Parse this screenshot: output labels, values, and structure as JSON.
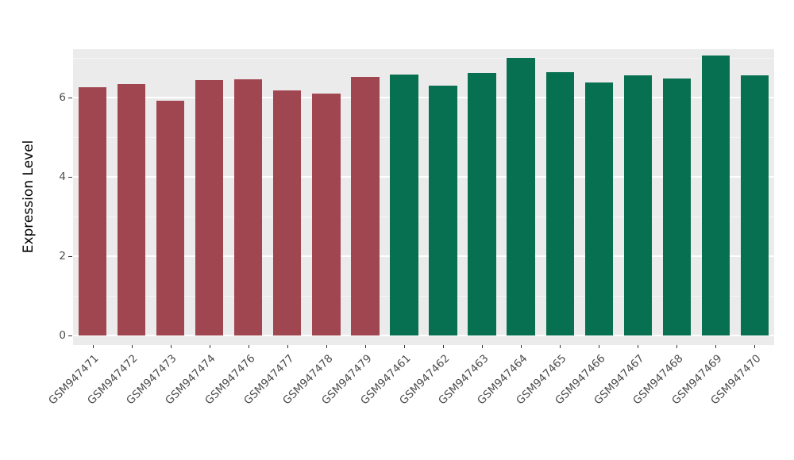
{
  "chart_data": {
    "type": "bar",
    "title": "",
    "xlabel": "",
    "ylabel": "Expression Level",
    "ylim": [
      0,
      7.22
    ],
    "yticks": [
      0,
      2,
      4,
      6
    ],
    "yticks_minor": [
      1,
      3,
      5,
      7
    ],
    "grid": "on",
    "legend": "none",
    "panel_background": "#ebebeb",
    "gridline_color": "#ffffff",
    "categories": [
      "GSM947471",
      "GSM947472",
      "GSM947473",
      "GSM947474",
      "GSM947476",
      "GSM947477",
      "GSM947478",
      "GSM947479",
      "GSM947461",
      "GSM947462",
      "GSM947463",
      "GSM947464",
      "GSM947465",
      "GSM947466",
      "GSM947467",
      "GSM947468",
      "GSM947469",
      "GSM947470"
    ],
    "values": [
      6.27,
      6.35,
      5.93,
      6.44,
      6.46,
      6.19,
      6.1,
      6.52,
      6.58,
      6.31,
      6.63,
      7.0,
      6.64,
      6.38,
      6.56,
      6.48,
      7.06,
      6.56
    ],
    "colors": [
      "#a04651",
      "#a04651",
      "#a04651",
      "#a04651",
      "#a04651",
      "#a04651",
      "#a04651",
      "#a04651",
      "#077050",
      "#077050",
      "#077050",
      "#077050",
      "#077050",
      "#077050",
      "#077050",
      "#077050",
      "#077050",
      "#077050"
    ],
    "group_colors": {
      "left_group": "#a04651",
      "right_group": "#077050"
    }
  }
}
